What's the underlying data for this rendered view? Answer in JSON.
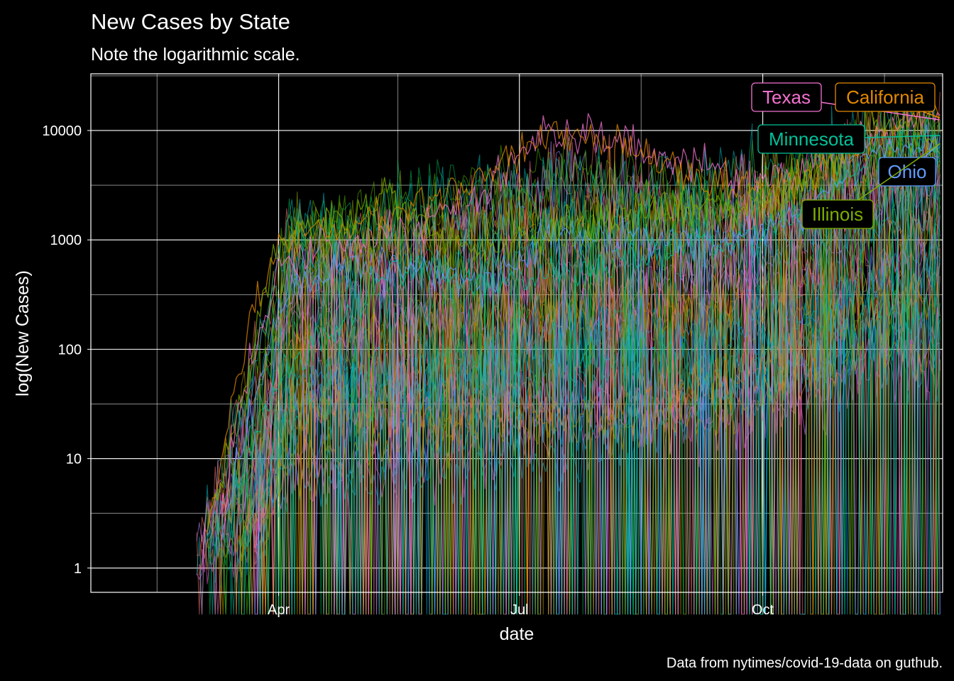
{
  "chart_data": {
    "type": "line",
    "title": "New Cases by State",
    "subtitle": "Note the logarithmic scale.",
    "xlabel": "date",
    "ylabel": "log(New Cases)",
    "caption": "Data from nytimes/covid-19-data on guthub.",
    "x_range": [
      "2020-01-21",
      "2020-12-08"
    ],
    "ylim": [
      0.6,
      33000
    ],
    "y_scale": "log10",
    "grid": true,
    "legend": "none",
    "x_ticks": [
      {
        "date": "2020-04-01",
        "label": "Apr"
      },
      {
        "date": "2020-07-01",
        "label": "Jul"
      },
      {
        "date": "2020-10-01",
        "label": "Oct"
      }
    ],
    "x_minor_ticks": [
      "2020-02-15",
      "2020-05-16",
      "2020-08-16",
      "2020-11-16"
    ],
    "y_ticks": [
      {
        "value": 1,
        "label": "1"
      },
      {
        "value": 10,
        "label": "10"
      },
      {
        "value": 100,
        "label": "100"
      },
      {
        "value": 1000,
        "label": "1000"
      },
      {
        "value": 10000,
        "label": "10000"
      }
    ],
    "y_minor_ticks": [
      3.16,
      31.6,
      316,
      3160,
      31600
    ],
    "series": [
      {
        "name": "Texas",
        "color": "#f472d0",
        "x": [
          "2020-03-10",
          "2020-03-20",
          "2020-04-01",
          "2020-04-20",
          "2020-05-15",
          "2020-06-15",
          "2020-07-10",
          "2020-07-25",
          "2020-08-15",
          "2020-09-10",
          "2020-10-01",
          "2020-10-20",
          "2020-11-10",
          "2020-12-01",
          "2020-12-07"
        ],
        "y": [
          3,
          60,
          600,
          900,
          1100,
          2500,
          9000,
          10000,
          7000,
          4500,
          4000,
          5000,
          9000,
          12000,
          12500
        ]
      },
      {
        "name": "California",
        "color": "#e38900",
        "x": [
          "2020-03-05",
          "2020-03-20",
          "2020-04-01",
          "2020-04-20",
          "2020-05-15",
          "2020-06-15",
          "2020-07-10",
          "2020-07-25",
          "2020-08-15",
          "2020-09-10",
          "2020-10-01",
          "2020-10-20",
          "2020-11-10",
          "2020-12-01",
          "2020-12-07"
        ],
        "y": [
          2,
          150,
          1000,
          1200,
          1800,
          3500,
          9000,
          10000,
          6500,
          3500,
          3000,
          4000,
          7000,
          14000,
          13000
        ]
      },
      {
        "name": "Minnesota",
        "color": "#00c19a",
        "x": [
          "2020-03-15",
          "2020-04-01",
          "2020-04-20",
          "2020-05-15",
          "2020-06-15",
          "2020-07-15",
          "2020-08-15",
          "2020-09-15",
          "2020-10-01",
          "2020-10-20",
          "2020-11-10",
          "2020-12-01",
          "2020-12-07"
        ],
        "y": [
          5,
          60,
          150,
          600,
          400,
          500,
          700,
          1000,
          1200,
          2200,
          6000,
          9000,
          9000
        ]
      },
      {
        "name": "Ohio",
        "color": "#619cff",
        "x": [
          "2020-03-12",
          "2020-04-01",
          "2020-04-20",
          "2020-05-15",
          "2020-06-15",
          "2020-07-15",
          "2020-08-15",
          "2020-09-15",
          "2020-10-01",
          "2020-10-20",
          "2020-11-10",
          "2020-12-01",
          "2020-12-07"
        ],
        "y": [
          3,
          300,
          500,
          600,
          400,
          1200,
          1000,
          1000,
          1100,
          2200,
          6000,
          8000,
          7600
        ]
      },
      {
        "name": "Illinois",
        "color": "#7cae00",
        "x": [
          "2020-03-05",
          "2020-04-01",
          "2020-04-20",
          "2020-05-10",
          "2020-06-15",
          "2020-07-15",
          "2020-08-15",
          "2020-09-15",
          "2020-10-01",
          "2020-10-20",
          "2020-11-10",
          "2020-12-01",
          "2020-12-07"
        ],
        "y": [
          2,
          900,
          1500,
          2500,
          700,
          1200,
          1800,
          2000,
          2100,
          4000,
          12000,
          8500,
          7600
        ]
      }
    ],
    "background_series_count": 50,
    "annotations": [
      {
        "label": "Texas",
        "series": "Texas",
        "at_date": "2020-12-07",
        "at_value": 12500,
        "color": "#f472d0"
      },
      {
        "label": "California",
        "series": "California",
        "at_date": "2020-12-07",
        "at_value": 13000,
        "color": "#e38900"
      },
      {
        "label": "Minnesota",
        "series": "Minnesota",
        "at_date": "2020-12-07",
        "at_value": 9000,
        "color": "#00c19a"
      },
      {
        "label": "Ohio",
        "series": "Ohio",
        "at_date": "2020-12-07",
        "at_value": 7600,
        "color": "#619cff"
      },
      {
        "label": "Illinois",
        "series": "Illinois",
        "at_date": "2020-12-07",
        "at_value": 7600,
        "color": "#7cae00"
      }
    ]
  }
}
